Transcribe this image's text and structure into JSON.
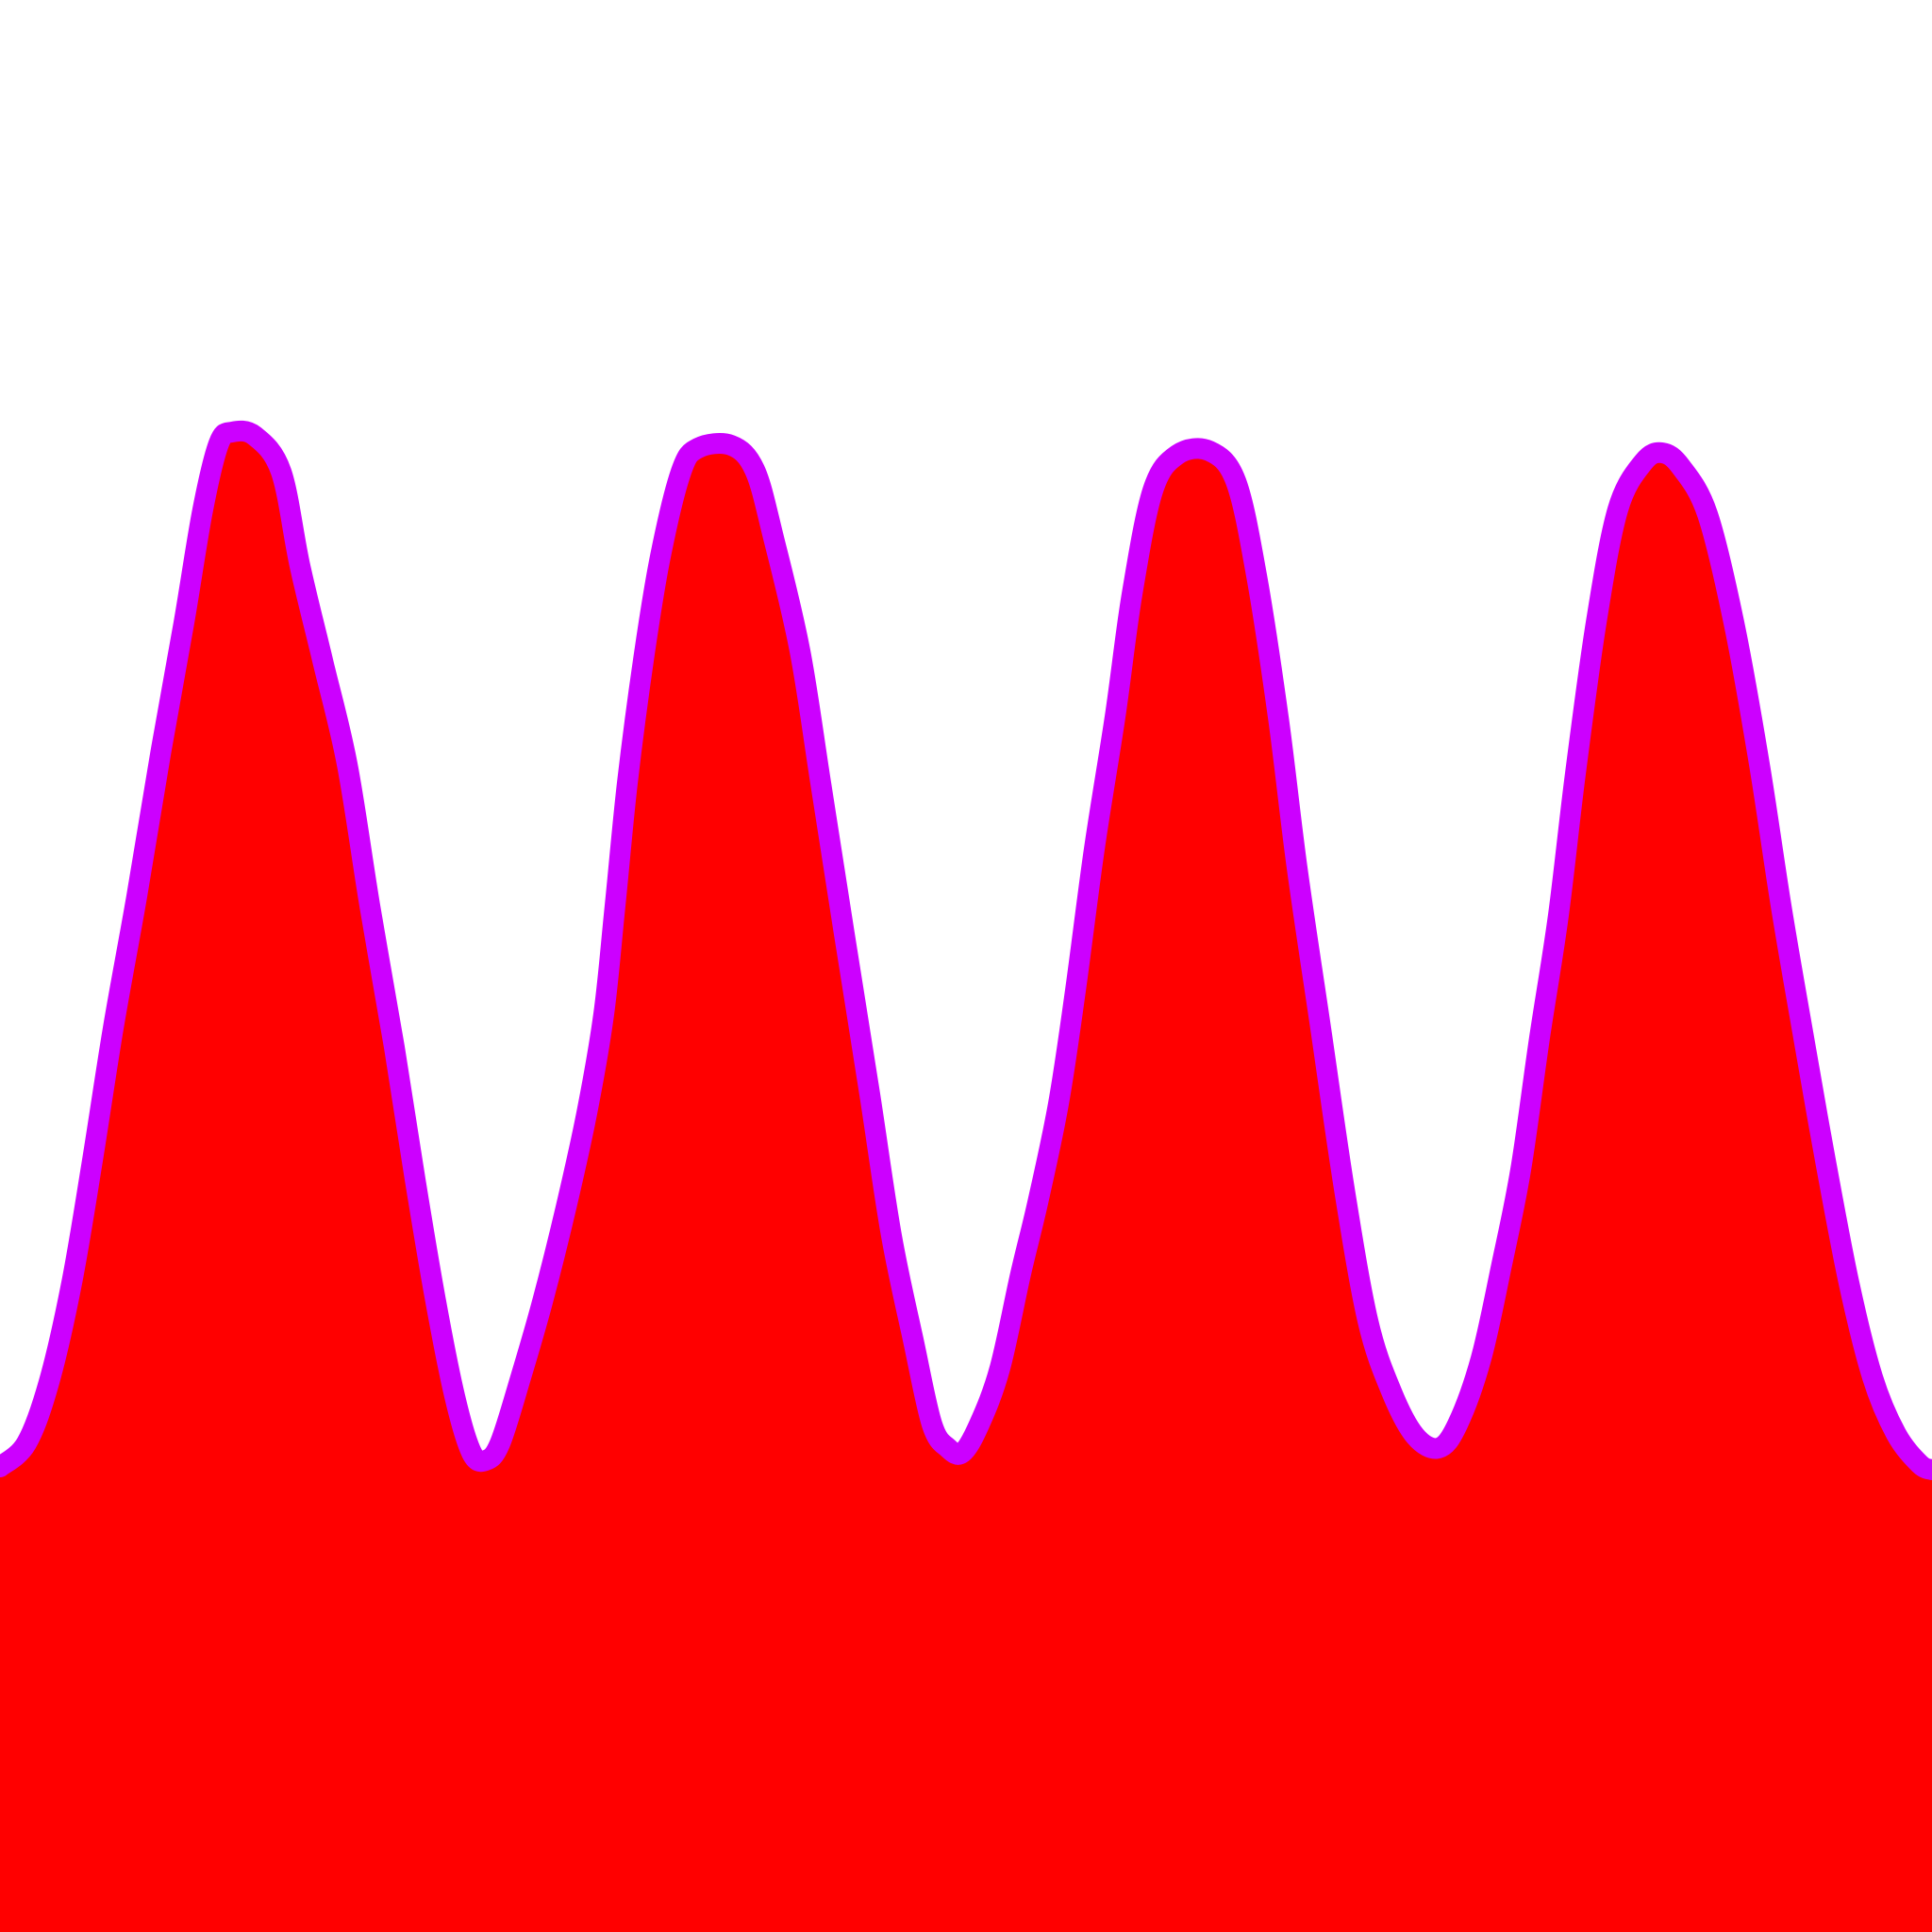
{
  "scene": {
    "background_color": "#ffffff",
    "fill_color": "#ff0000",
    "outline_color": "#cc00ff",
    "shape": "wave-band",
    "peak_count": 4,
    "trough_count": 3
  }
}
